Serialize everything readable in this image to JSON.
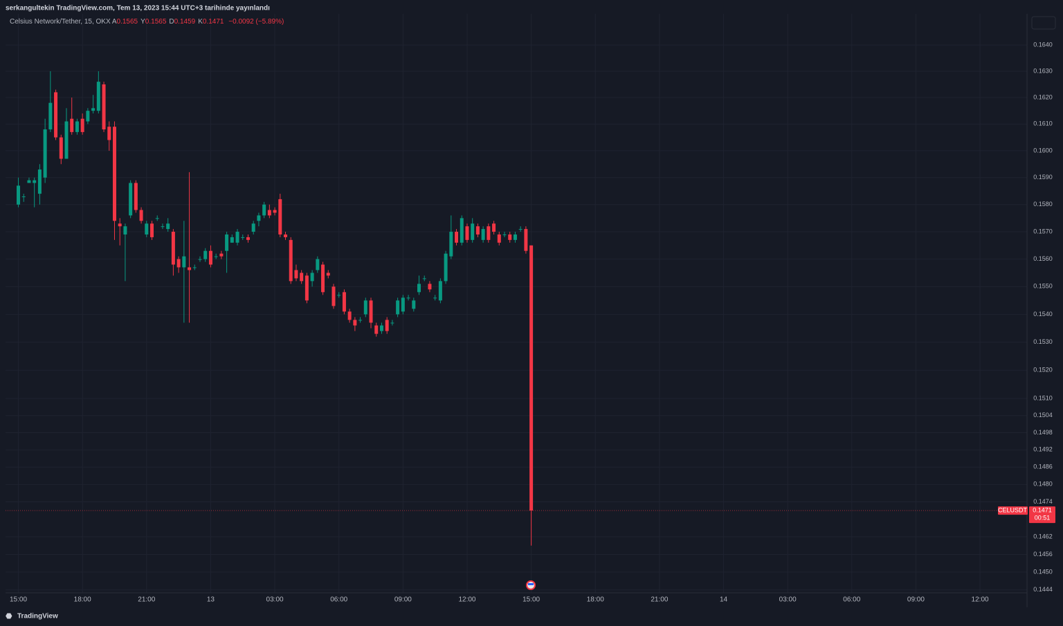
{
  "header": {
    "published": "serkangultekin TradingView.com, Tem 13, 2023 15:44 UTC+3 tarihinde yayınlandı",
    "brand": "TradingView"
  },
  "chart_data": {
    "type": "candlestick",
    "title": "Celsius Network/Tether, 15, OKX",
    "ohlc_legend": [
      {
        "label": "A",
        "value": "0.1565"
      },
      {
        "label": "Y",
        "value": "0.1565"
      },
      {
        "label": "D",
        "value": "0.1459"
      },
      {
        "label": "K",
        "value": "0.1471"
      }
    ],
    "change": "−0.0092 (−5.89%)",
    "symbol": "CELUSDT",
    "last_price_label": "0.1471",
    "countdown": "00:51",
    "up_color": "#089981",
    "down_color": "#f23645",
    "log_scale": true,
    "grid": true,
    "xlim": [
      14.4,
      62.2
    ],
    "ylim": [
      0.1443,
      0.1652
    ],
    "xticks": [
      {
        "value": 15,
        "label": "15:00"
      },
      {
        "value": 18,
        "label": "18:00"
      },
      {
        "value": 21,
        "label": "21:00"
      },
      {
        "value": 24,
        "label": "13"
      },
      {
        "value": 27,
        "label": "03:00"
      },
      {
        "value": 30,
        "label": "06:00"
      },
      {
        "value": 33,
        "label": "09:00"
      },
      {
        "value": 36,
        "label": "12:00"
      },
      {
        "value": 39,
        "label": "15:00"
      },
      {
        "value": 42,
        "label": "18:00"
      },
      {
        "value": 45,
        "label": "21:00"
      },
      {
        "value": 48,
        "label": "14"
      },
      {
        "value": 51,
        "label": "03:00"
      },
      {
        "value": 54,
        "label": "06:00"
      },
      {
        "value": 57,
        "label": "09:00"
      },
      {
        "value": 60,
        "label": "12:00"
      }
    ],
    "yticks": [
      {
        "value": 0.164,
        "label": "0.1640"
      },
      {
        "value": 0.163,
        "label": "0.1630"
      },
      {
        "value": 0.162,
        "label": "0.1620"
      },
      {
        "value": 0.161,
        "label": "0.1610"
      },
      {
        "value": 0.16,
        "label": "0.1600"
      },
      {
        "value": 0.159,
        "label": "0.1590"
      },
      {
        "value": 0.158,
        "label": "0.1580"
      },
      {
        "value": 0.157,
        "label": "0.1570"
      },
      {
        "value": 0.156,
        "label": "0.1560"
      },
      {
        "value": 0.155,
        "label": "0.1550"
      },
      {
        "value": 0.154,
        "label": "0.1540"
      },
      {
        "value": 0.153,
        "label": "0.1530"
      },
      {
        "value": 0.152,
        "label": "0.1520"
      },
      {
        "value": 0.151,
        "label": "0.1510"
      },
      {
        "value": 0.1504,
        "label": "0.1504"
      },
      {
        "value": 0.1498,
        "label": "0.1498"
      },
      {
        "value": 0.1492,
        "label": "0.1492"
      },
      {
        "value": 0.1486,
        "label": "0.1486"
      },
      {
        "value": 0.148,
        "label": "0.1480"
      },
      {
        "value": 0.1474,
        "label": "0.1474"
      },
      {
        "value": 0.1462,
        "label": "0.1462"
      },
      {
        "value": 0.1456,
        "label": "0.1456"
      },
      {
        "value": 0.145,
        "label": "0.1450"
      },
      {
        "value": 0.1444,
        "label": "0.1444"
      }
    ],
    "x": [
      15,
      15.25,
      15.5,
      15.75,
      16,
      16.25,
      16.5,
      16.75,
      17,
      17.25,
      17.5,
      17.75,
      18,
      18.25,
      18.5,
      18.75,
      19,
      19.25,
      19.5,
      19.75,
      20,
      20.25,
      20.5,
      20.75,
      21,
      21.25,
      21.5,
      21.75,
      22,
      22.25,
      22.5,
      22.75,
      23,
      23.25,
      23.5,
      23.75,
      24,
      24.25,
      24.5,
      24.75,
      25,
      25.25,
      25.5,
      25.75,
      26,
      26.25,
      26.5,
      26.75,
      27,
      27.25,
      27.5,
      27.75,
      28,
      28.25,
      28.5,
      28.75,
      29,
      29.25,
      29.5,
      29.75,
      30,
      30.25,
      30.5,
      30.75,
      31,
      31.25,
      31.5,
      31.75,
      32,
      32.25,
      32.5,
      32.75,
      33,
      33.25,
      33.5,
      33.75,
      34,
      34.25,
      34.5,
      34.75,
      35,
      35.25,
      35.5,
      35.75,
      36,
      36.25,
      36.5,
      36.75,
      37,
      37.25,
      37.5,
      37.75,
      38,
      38.25,
      38.5,
      38.75,
      39
    ],
    "open": [
      0.158,
      0.1583,
      0.1588,
      0.1588,
      0.1584,
      0.159,
      0.1608,
      0.1622,
      0.1605,
      0.1597,
      0.1612,
      0.1607,
      0.1612,
      0.1611,
      0.1615,
      0.1615,
      0.1625,
      0.1609,
      0.1609,
      0.1573,
      0.1569,
      0.1576,
      0.1588,
      0.1578,
      0.1569,
      0.1573,
      0.1575,
      0.1572,
      0.1571,
      0.157,
      0.156,
      0.1557,
      0.1557,
      0.1557,
      0.156,
      0.156,
      0.1563,
      0.1561,
      0.1562,
      0.1563,
      0.1566,
      0.1566,
      0.1568,
      0.1568,
      0.157,
      0.1574,
      0.1576,
      0.1578,
      0.1578,
      0.1582,
      0.1569,
      0.1567,
      0.1556,
      0.1555,
      0.1554,
      0.1552,
      0.1556,
      0.1558,
      0.1555,
      0.155,
      0.1547,
      0.1548,
      0.1541,
      0.1538,
      0.1538,
      0.154,
      0.1545,
      0.1536,
      0.1534,
      0.1538,
      0.1537,
      0.154,
      0.1541,
      0.1546,
      0.1542,
      0.1548,
      0.1553,
      0.1551,
      0.1546,
      0.1545,
      0.1552,
      0.1561,
      0.157,
      0.1566,
      0.1572,
      0.1567,
      0.1572,
      0.1567,
      0.1572,
      0.1573,
      0.1569,
      0.1569,
      0.1569,
      0.1567,
      0.1571,
      0.1571,
      0.1565
    ],
    "high": [
      0.159,
      0.1584,
      0.159,
      0.159,
      0.1595,
      0.1612,
      0.163,
      0.1623,
      0.1606,
      0.1616,
      0.162,
      0.1612,
      0.1614,
      0.1616,
      0.1621,
      0.163,
      0.1626,
      0.1611,
      0.1611,
      0.1575,
      0.1573,
      0.1589,
      0.1589,
      0.1579,
      0.1574,
      0.1574,
      0.1576,
      0.1573,
      0.1575,
      0.1571,
      0.1561,
      0.1574,
      0.1592,
      0.1558,
      0.1561,
      0.1564,
      0.1565,
      0.1562,
      0.1563,
      0.157,
      0.1569,
      0.1571,
      0.1569,
      0.1569,
      0.1574,
      0.1577,
      0.1581,
      0.158,
      0.1579,
      0.1584,
      0.157,
      0.1568,
      0.1558,
      0.1556,
      0.1555,
      0.1556,
      0.1561,
      0.1559,
      0.1556,
      0.1551,
      0.1548,
      0.1549,
      0.1542,
      0.1539,
      0.1539,
      0.1546,
      0.1546,
      0.1537,
      0.1537,
      0.1539,
      0.1538,
      0.1546,
      0.1547,
      0.1547,
      0.1546,
      0.1554,
      0.1554,
      0.1552,
      0.1547,
      0.1553,
      0.1563,
      0.1576,
      0.1571,
      0.1576,
      0.1573,
      0.1575,
      0.1573,
      0.1572,
      0.1573,
      0.1574,
      0.157,
      0.157,
      0.157,
      0.157,
      0.1572,
      0.1572,
      0.1565
    ],
    "low": [
      0.1579,
      0.1581,
      0.1588,
      0.1579,
      0.158,
      0.1588,
      0.1607,
      0.1604,
      0.1595,
      0.1597,
      0.1606,
      0.1606,
      0.1606,
      0.161,
      0.1614,
      0.1614,
      0.1607,
      0.16,
      0.1567,
      0.1565,
      0.1552,
      0.1575,
      0.1577,
      0.1573,
      0.1568,
      0.1567,
      0.1574,
      0.1571,
      0.157,
      0.1554,
      0.1555,
      0.1537,
      0.1537,
      0.1556,
      0.1559,
      0.1559,
      0.1557,
      0.156,
      0.156,
      0.1555,
      0.1566,
      0.1565,
      0.1567,
      0.1566,
      0.1569,
      0.1572,
      0.1575,
      0.1575,
      0.1576,
      0.1568,
      0.1567,
      0.1551,
      0.1552,
      0.1551,
      0.1544,
      0.155,
      0.1555,
      0.1547,
      0.1553,
      0.1542,
      0.1546,
      0.154,
      0.1537,
      0.1534,
      0.1537,
      0.1539,
      0.1535,
      0.1532,
      0.1533,
      0.1533,
      0.1536,
      0.1539,
      0.154,
      0.1545,
      0.1541,
      0.1547,
      0.1552,
      0.1548,
      0.1545,
      0.1544,
      0.1551,
      0.156,
      0.1565,
      0.1565,
      0.1566,
      0.1566,
      0.1568,
      0.1566,
      0.1566,
      0.1569,
      0.1565,
      0.1568,
      0.1566,
      0.1566,
      0.157,
      0.1562,
      0.1459
    ],
    "close": [
      0.1587,
      0.1583,
      0.1589,
      0.1589,
      0.1593,
      0.1608,
      0.1618,
      0.1605,
      0.1597,
      0.1611,
      0.1607,
      0.1611,
      0.1607,
      0.1615,
      0.1616,
      0.1626,
      0.1608,
      0.1604,
      0.1574,
      0.1572,
      0.1572,
      0.1588,
      0.1578,
      0.1574,
      0.1573,
      0.1568,
      0.1575,
      0.1572,
      0.1573,
      0.1558,
      0.1557,
      0.1561,
      0.1556,
      0.1557,
      0.156,
      0.1563,
      0.1558,
      0.1561,
      0.1561,
      0.1569,
      0.1568,
      0.157,
      0.1568,
      0.1567,
      0.1573,
      0.1576,
      0.158,
      0.1576,
      0.1577,
      0.1569,
      0.1568,
      0.1552,
      0.1553,
      0.1552,
      0.1545,
      0.1555,
      0.156,
      0.1548,
      0.1554,
      0.1543,
      0.1547,
      0.1541,
      0.1538,
      0.1536,
      0.1538,
      0.1545,
      0.1537,
      0.1533,
      0.1536,
      0.1534,
      0.1537,
      0.1545,
      0.1546,
      0.1546,
      0.1545,
      0.1551,
      0.1553,
      0.1549,
      0.1546,
      0.1552,
      0.1562,
      0.157,
      0.1566,
      0.1575,
      0.1567,
      0.1573,
      0.1569,
      0.1571,
      0.1567,
      0.157,
      0.1566,
      0.1569,
      0.1567,
      0.1569,
      0.1571,
      0.1563,
      0.1471
    ]
  }
}
